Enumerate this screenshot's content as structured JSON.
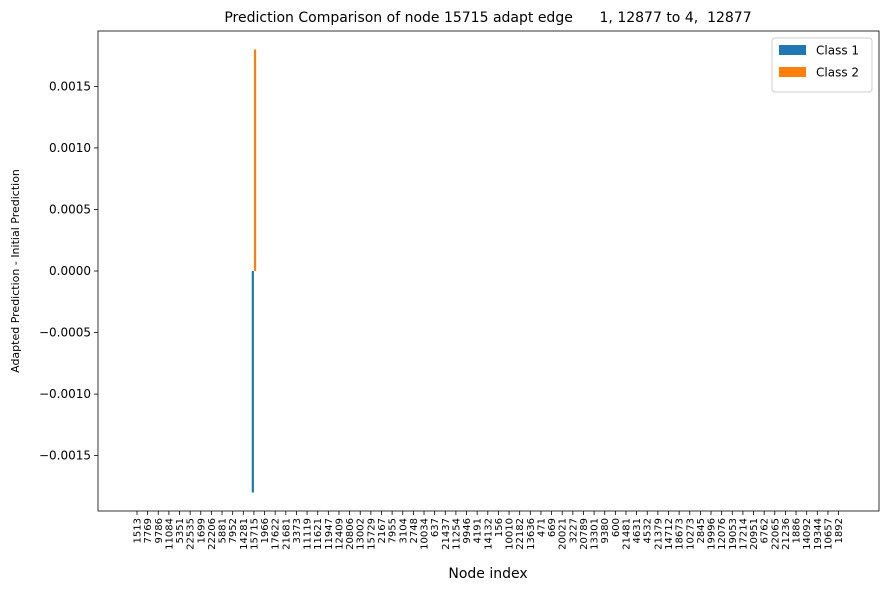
{
  "chart_data": {
    "type": "bar",
    "title": "Prediction Comparison of node 15715 adapt edge      1, 12877 to 4,  12877",
    "xlabel": "Node index",
    "ylabel": "Adapted Prediction - Initial Prediction",
    "ylim": [
      -0.00195,
      0.00195
    ],
    "yticks": [
      -0.0015,
      -0.001,
      -0.0005,
      0.0,
      0.0005,
      0.001,
      0.0015
    ],
    "ytick_labels": [
      "−0.0015",
      "−0.0010",
      "−0.0005",
      "0.0000",
      "0.0005",
      "0.0010",
      "0.0015"
    ],
    "grid": false,
    "legend_position": "top-right",
    "categories": [
      "1513",
      "7769",
      "9786",
      "11084",
      "5351",
      "22535",
      "1699",
      "22206",
      "5881",
      "7952",
      "14281",
      "15715",
      "1966",
      "17622",
      "21681",
      "3373",
      "11119",
      "11621",
      "11947",
      "12409",
      "20806",
      "13002",
      "15729",
      "2167",
      "7955",
      "3104",
      "2748",
      "10034",
      "637",
      "21437",
      "11254",
      "9946",
      "4191",
      "14132",
      "156",
      "10010",
      "22182",
      "13636",
      "471",
      "669",
      "20021",
      "3227",
      "20789",
      "13301",
      "9380",
      "600",
      "21481",
      "4631",
      "4532",
      "21379",
      "14712",
      "18673",
      "10273",
      "2845",
      "19996",
      "12076",
      "19053",
      "17214",
      "20951",
      "6762",
      "22065",
      "21236",
      "1886",
      "14092",
      "19344",
      "10657",
      "1892"
    ],
    "series": [
      {
        "name": "Class 1",
        "color": "#1f77b4",
        "values": [
          0,
          0,
          0,
          0,
          0,
          0,
          0,
          0,
          0,
          0,
          0,
          -0.0018,
          0,
          0,
          0,
          0,
          0,
          0,
          0,
          0,
          0,
          0,
          0,
          0,
          0,
          0,
          0,
          0,
          0,
          0,
          0,
          0,
          0,
          0,
          0,
          0,
          0,
          0,
          0,
          0,
          0,
          0,
          0,
          0,
          0,
          0,
          0,
          0,
          0,
          0,
          0,
          0,
          0,
          0,
          0,
          0,
          0,
          0,
          0,
          0,
          0,
          0,
          0,
          0,
          0,
          0,
          0
        ]
      },
      {
        "name": "Class 2",
        "color": "#ff7f0e",
        "values": [
          0,
          0,
          0,
          0,
          0,
          0,
          0,
          0,
          0,
          0,
          0,
          0.0018,
          0,
          0,
          0,
          0,
          0,
          0,
          0,
          0,
          0,
          0,
          0,
          0,
          0,
          0,
          0,
          0,
          0,
          0,
          0,
          0,
          0,
          0,
          0,
          0,
          0,
          0,
          0,
          0,
          0,
          0,
          0,
          0,
          0,
          0,
          0,
          0,
          0,
          0,
          0,
          0,
          0,
          0,
          0,
          0,
          0,
          0,
          0,
          0,
          0,
          0,
          0,
          0,
          0,
          0,
          0
        ]
      }
    ]
  }
}
